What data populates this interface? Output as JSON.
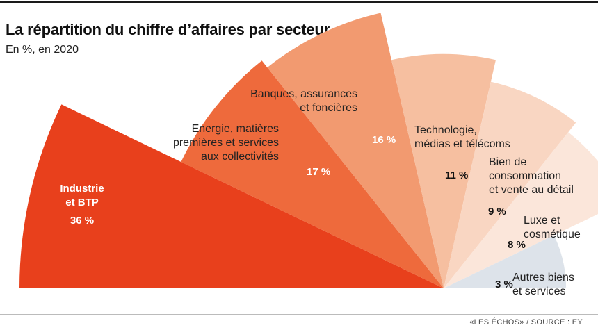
{
  "title": "La répartition du chiffre d’affaires par secteur",
  "subtitle": "En %, en 2020",
  "source": "«LES ÉCHOS» / SOURCE : EY",
  "chart_data": {
    "type": "pie",
    "variant": "polar-area half fan",
    "title": "La répartition du chiffre d’affaires par secteur",
    "subtitle": "En %, en 2020",
    "unit": "%",
    "slices": [
      {
        "label": [
          "Industrie",
          "et BTP"
        ],
        "value": 36,
        "value_label": "36 %",
        "color": "#e8401c",
        "text_color": "#ffffff"
      },
      {
        "label": [
          "Energie, matières",
          "premières et services",
          "aux collectivités"
        ],
        "value": 17,
        "value_label": "17 %",
        "color": "#ee6a3c",
        "text_color": "#ffffff"
      },
      {
        "label": [
          "Banques, assurances",
          "et foncières"
        ],
        "value": 16,
        "value_label": "16 %",
        "color": "#f29a70",
        "text_color": "#ffffff"
      },
      {
        "label": [
          "Technologie,",
          "médias et télécoms"
        ],
        "value": 11,
        "value_label": "11 %",
        "color": "#f6bfa0",
        "text_color": "#111111"
      },
      {
        "label": [
          "Bien de",
          "consommation",
          "et vente au détail"
        ],
        "value": 9,
        "value_label": "9 %",
        "color": "#f9d6c2",
        "text_color": "#111111"
      },
      {
        "label": [
          "Luxe et",
          "cosmétique"
        ],
        "value": 8,
        "value_label": "8 %",
        "color": "#fbe6da",
        "text_color": "#111111"
      },
      {
        "label": [
          "Autres biens",
          "et services"
        ],
        "value": 3,
        "value_label": "3 %",
        "color": "#dde3ea",
        "text_color": "#111111"
      }
    ]
  }
}
